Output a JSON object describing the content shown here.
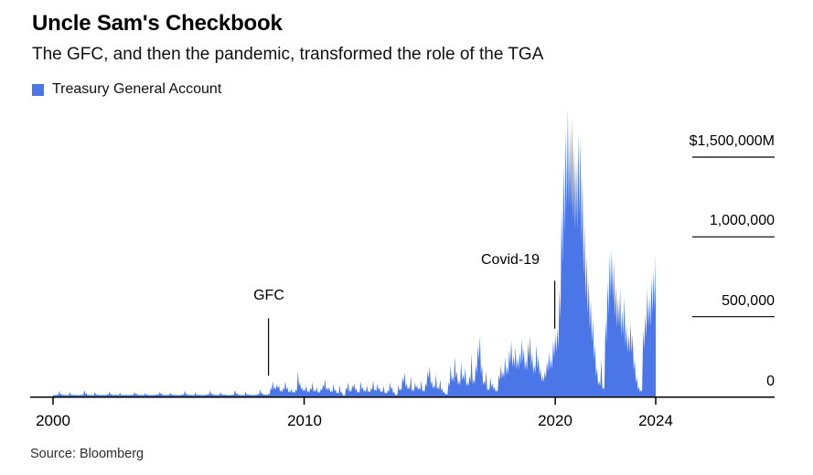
{
  "header": {
    "title": "Uncle Sam's Checkbook",
    "subtitle": "The GFC, and then the pandemic, transformed the role of the TGA"
  },
  "legend": {
    "items": [
      {
        "label": "Treasury General Account",
        "color": "#4a76e8"
      }
    ]
  },
  "source": "Source: Bloomberg",
  "colors": {
    "area": "#4a76e8",
    "axis": "#000000",
    "annotation_line": "#000000"
  },
  "chart_data": {
    "type": "area",
    "title": "Uncle Sam's Checkbook",
    "series_name": "Treasury General Account",
    "unit": "$M",
    "x_start_year": 2000,
    "x_end_year": 2024,
    "x_interval_months": 1,
    "ylim": [
      0,
      1900000
    ],
    "grid": "right-side tick rules only",
    "legend_position": "top-left",
    "x_ticks": [
      {
        "year": 2000,
        "label": "2000"
      },
      {
        "year": 2010,
        "label": "2010"
      },
      {
        "year": 2020,
        "label": "2020"
      },
      {
        "year": 2024,
        "label": "2024"
      }
    ],
    "y_ticks": [
      {
        "value": 1500000,
        "label": "$1,500,000M"
      },
      {
        "value": 1000000,
        "label": "1,000,000"
      },
      {
        "value": 500000,
        "label": "500,000"
      },
      {
        "value": 0,
        "label": "0"
      }
    ],
    "annotations": [
      {
        "label": "GFC",
        "year": 2008.58,
        "line_top_value": 490000,
        "line_bottom_value": 130000
      },
      {
        "label": "Covid-19",
        "year": 2019.98,
        "line_top_value": 725000,
        "line_bottom_value": 425000
      }
    ],
    "values_musd": [
      10000,
      9000,
      12000,
      35000,
      16000,
      10000,
      11000,
      9000,
      30000,
      12000,
      10000,
      11000,
      9000,
      10000,
      13000,
      40000,
      19000,
      11000,
      10000,
      9000,
      28000,
      13000,
      11000,
      10000,
      10000,
      11000,
      14000,
      32000,
      15000,
      10000,
      12000,
      10000,
      25000,
      11000,
      10000,
      12000,
      9000,
      10000,
      12000,
      28000,
      17000,
      11000,
      10000,
      9000,
      22000,
      12000,
      11000,
      10000,
      10000,
      12000,
      13000,
      30000,
      18000,
      10000,
      11000,
      10000,
      24000,
      13000,
      10000,
      11000,
      9000,
      11000,
      14000,
      36000,
      16000,
      11000,
      10000,
      9000,
      26000,
      12000,
      11000,
      10000,
      10000,
      12000,
      15000,
      38000,
      19000,
      12000,
      11000,
      10000,
      28000,
      13000,
      12000,
      11000,
      9000,
      11000,
      13000,
      42000,
      20000,
      11000,
      10000,
      9000,
      30000,
      14000,
      12000,
      10000,
      10000,
      12000,
      16000,
      45000,
      22000,
      13000,
      12000,
      16000,
      55000,
      95000,
      60000,
      75000,
      70000,
      40000,
      55000,
      95000,
      60000,
      35000,
      50000,
      30000,
      45000,
      165000,
      90000,
      60000,
      45000,
      70000,
      35000,
      55000,
      90000,
      40000,
      60000,
      30000,
      50000,
      75000,
      110000,
      55000,
      60000,
      35000,
      80000,
      45000,
      25000,
      70000,
      30000,
      8000,
      55000,
      90000,
      40000,
      70000,
      85000,
      50000,
      30000,
      95000,
      60000,
      40000,
      70000,
      35000,
      55000,
      100000,
      45000,
      80000,
      55000,
      35000,
      70000,
      25000,
      40000,
      90000,
      60000,
      30000,
      10000,
      75000,
      50000,
      120000,
      150000,
      80000,
      60000,
      130000,
      45000,
      90000,
      70000,
      55000,
      100000,
      40000,
      85000,
      160000,
      190000,
      100000,
      70000,
      140000,
      60000,
      110000,
      50000,
      30000,
      15000,
      90000,
      200000,
      130000,
      250000,
      160000,
      100000,
      220000,
      140000,
      180000,
      90000,
      130000,
      270000,
      110000,
      200000,
      320000,
      380000,
      200000,
      100000,
      160000,
      50000,
      120000,
      80000,
      60000,
      40000,
      140000,
      200000,
      160000,
      250000,
      190000,
      290000,
      350000,
      260000,
      310000,
      240000,
      280000,
      360000,
      300000,
      230000,
      340000,
      380000,
      270000,
      200000,
      330000,
      250000,
      180000,
      130000,
      160000,
      220000,
      280000,
      240000,
      350000,
      390000,
      430000,
      680000,
      1180000,
      1450000,
      1660000,
      1810000,
      1680000,
      1750000,
      1580000,
      1480000,
      1650000,
      1620000,
      1380000,
      1080000,
      880000,
      740000,
      600000,
      480000,
      320000,
      180000,
      95000,
      230000,
      60000,
      480000,
      720000,
      890000,
      920000,
      850000,
      700000,
      620000,
      680000,
      540000,
      620000,
      450000,
      390000,
      460000,
      390000,
      230000,
      120000,
      60000,
      40000,
      420000,
      520000,
      680000,
      620000,
      740000,
      780000,
      900000
    ]
  }
}
